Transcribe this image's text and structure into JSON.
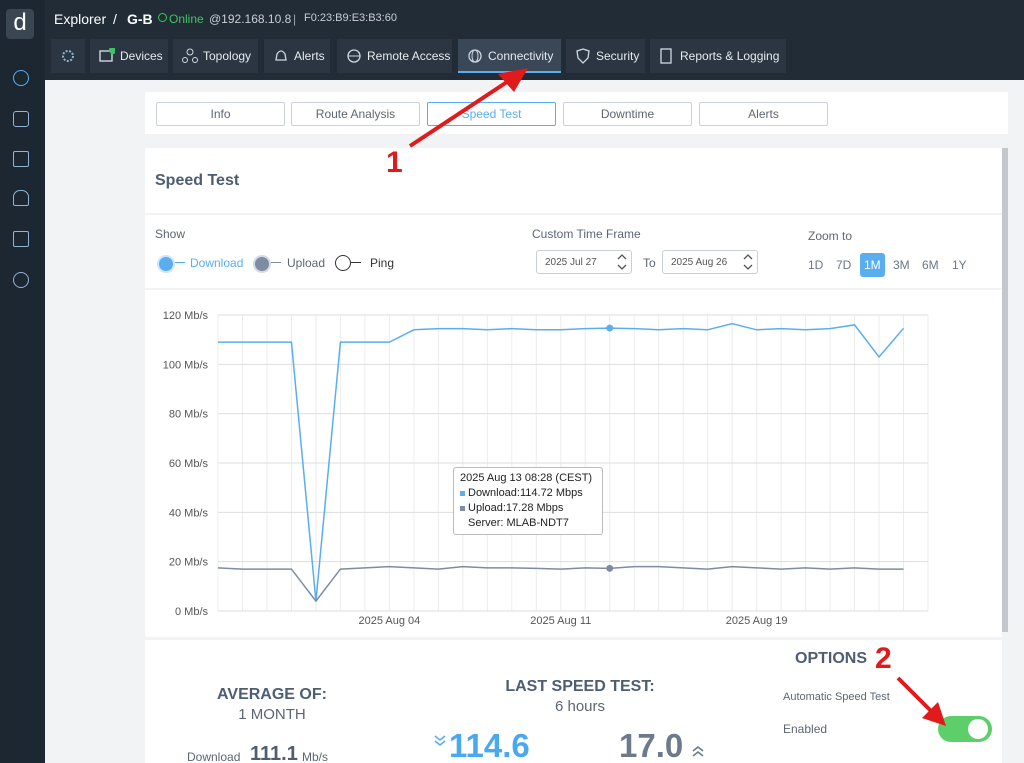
{
  "logo": "d",
  "header": {
    "app": "Explorer",
    "separator": "/",
    "device": "G-B",
    "status": "Online",
    "ip": "@192.168.10.8",
    "divider": "|",
    "mac": "F0:23:B9:E3:B3:60"
  },
  "tabs": [
    "Devices",
    "Topology",
    "Alerts",
    "Remote Access",
    "Connectivity",
    "Security",
    "Reports & Logging"
  ],
  "subtabs": [
    "Info",
    "Route Analysis",
    "Speed Test",
    "Downtime",
    "Alerts"
  ],
  "section_title": "Speed Test",
  "controls": {
    "show_label": "Show",
    "ping_label": "Ping",
    "timeframe_label": "Custom Time Frame",
    "from": "2025 Jul 27",
    "to_label": "To",
    "to": "2025 Aug 26",
    "zoom_label": "Zoom to",
    "zoom_options": [
      "1D",
      "7D",
      "1M",
      "3M",
      "6M",
      "1Y"
    ]
  },
  "chart_data": {
    "type": "line",
    "x": [
      "2025 Jul 28",
      "2025 Jul 29",
      "2025 Jul 30",
      "2025 Jul 31",
      "2025 Aug 01",
      "2025 Aug 02",
      "2025 Aug 03",
      "2025 Aug 04",
      "2025 Aug 05",
      "2025 Aug 06",
      "2025 Aug 07",
      "2025 Aug 08",
      "2025 Aug 09",
      "2025 Aug 10",
      "2025 Aug 11",
      "2025 Aug 12",
      "2025 Aug 13",
      "2025 Aug 14",
      "2025 Aug 15",
      "2025 Aug 16",
      "2025 Aug 17",
      "2025 Aug 18",
      "2025 Aug 19",
      "2025 Aug 20",
      "2025 Aug 21",
      "2025 Aug 22",
      "2025 Aug 23",
      "2025 Aug 24",
      "2025 Aug 25"
    ],
    "series": [
      {
        "name": "Download",
        "color": "#5aaef0",
        "values": [
          109,
          109,
          109,
          109,
          4,
          109,
          109,
          109,
          114,
          114.5,
          114.5,
          114,
          114.5,
          114,
          114,
          114.5,
          114.7,
          114.5,
          114,
          114.5,
          114,
          116.5,
          114,
          114.5,
          114,
          114.5,
          116,
          103,
          114.6
        ]
      },
      {
        "name": "Upload",
        "color": "#7d8ca3",
        "values": [
          17.5,
          17,
          17,
          17,
          4,
          17,
          17.5,
          18,
          17.5,
          17,
          18,
          17.5,
          17.5,
          17.3,
          17,
          17.5,
          17.3,
          18,
          18,
          17.5,
          17,
          18,
          17.5,
          17,
          17.5,
          17,
          17.5,
          17,
          17
        ]
      }
    ],
    "ylim": [
      0,
      120
    ],
    "yticks": [
      {
        "value": 0,
        "label": "0 Mb/s"
      },
      {
        "value": 20,
        "label": "20 Mb/s"
      },
      {
        "value": 40,
        "label": "40 Mb/s"
      },
      {
        "value": 60,
        "label": "60 Mb/s"
      },
      {
        "value": 80,
        "label": "80 Mb/s"
      },
      {
        "value": 100,
        "label": "100 Mb/s"
      },
      {
        "value": 120,
        "label": "120 Mb/s"
      }
    ],
    "xticks": [
      "2025 Aug 04",
      "2025 Aug 11",
      "2025 Aug 19"
    ],
    "grid": true
  },
  "tooltip": {
    "time": "2025 Aug 13 08:28 (CEST)",
    "download": "Download:114.72 Mbps",
    "upload": "Upload:17.28 Mbps",
    "server": "Server: MLAB-NDT7"
  },
  "annotations": [
    "1",
    "2"
  ],
  "summary": {
    "average_title": "AVERAGE OF:",
    "average_period": "1 MONTH",
    "average_label": "Download",
    "average_download": "111.1",
    "unit": "Mb/s",
    "last_title": "LAST SPEED TEST:",
    "last_age": "6 hours",
    "last_download": "114.6",
    "last_upload": "17.0"
  },
  "options": {
    "title": "OPTIONS",
    "setting": "Automatic Speed Test",
    "state": "Enabled"
  }
}
